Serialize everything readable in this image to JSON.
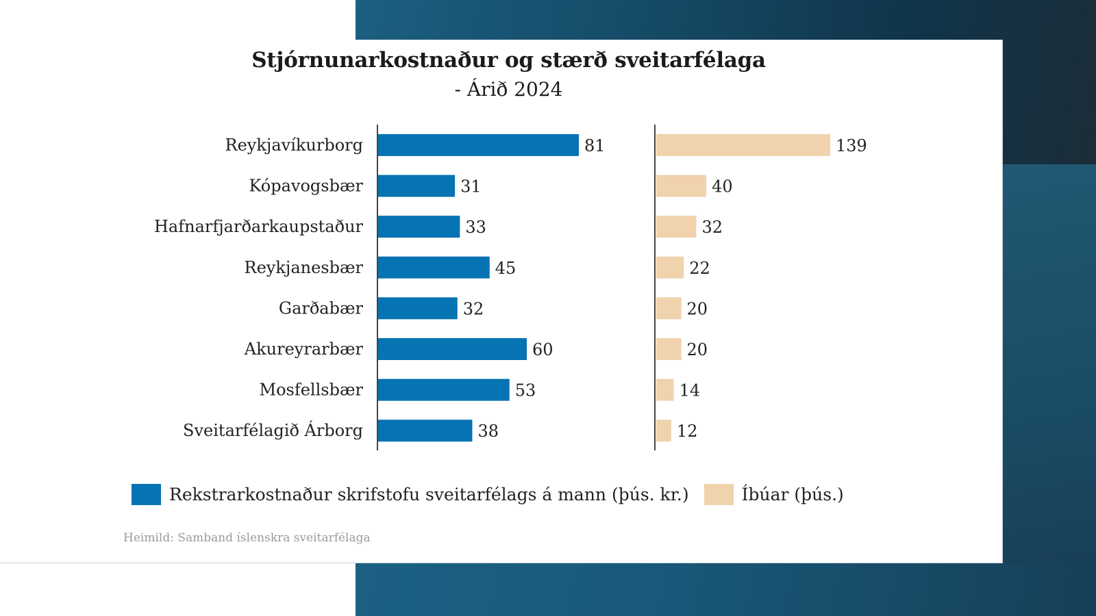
{
  "colors": {
    "cost_bar": "#0673b3",
    "population_bar": "#f0d2ad",
    "axis": "#444444",
    "text": "#222222",
    "source_text": "#9a9a9a"
  },
  "chart_data": {
    "type": "bar",
    "orientation": "horizontal",
    "title": "Stjórnunarkostnaður og stærð sveitarfélaga",
    "subtitle": "- Árið 2024",
    "categories": [
      "Reykjavíkurborg",
      "Kópavogsbær",
      "Hafnarfjarðarkaupstaður",
      "Reykjanesbær",
      "Garðabær",
      "Akureyrarbær",
      "Mosfellsbær",
      "Sveitarfélagið Árborg"
    ],
    "series": [
      {
        "name": "Rekstrarkostnaður skrifstofu sveitarfélags á mann (þús. kr.)",
        "key": "cost",
        "values": [
          81,
          31,
          33,
          45,
          32,
          60,
          53,
          38
        ]
      },
      {
        "name": "Íbúar (þús.)",
        "key": "population",
        "values": [
          139,
          40,
          32,
          22,
          20,
          20,
          14,
          12
        ]
      }
    ],
    "xlabel": "",
    "ylabel": "",
    "grid": false,
    "data_labels": true,
    "legend_position": "bottom",
    "source": "Heimild: Samband íslenskra sveitarfélaga"
  }
}
